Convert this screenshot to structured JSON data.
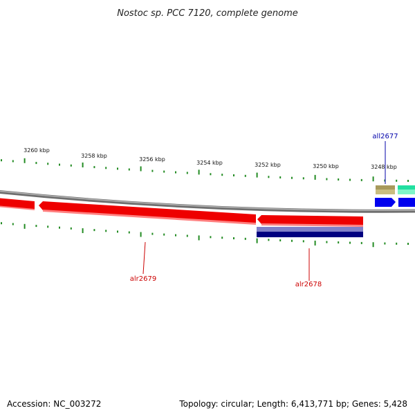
{
  "title": "Nostoc sp. PCC 7120, complete genome",
  "footer": {
    "accession": "Accession: NC_003272",
    "summary": "Topology: circular; Length: 6,413,771 bp; Genes: 5,428"
  },
  "colors": {
    "backbone": "#8c8c8c",
    "forward_cds": "#ee0000",
    "reverse_cds": "#000080",
    "tick": "#228b22",
    "label_forward": "#cc0000",
    "label_reverse": "#0000aa",
    "trna": "#a89a5c",
    "rrna": "#22e0a0",
    "gene_blue": "#0000ee"
  },
  "scale_labels": [
    {
      "kbp": 3260,
      "label": "3260 kbp"
    },
    {
      "kbp": 3258,
      "label": "3258 kbp"
    },
    {
      "kbp": 3256,
      "label": "3256 kbp"
    },
    {
      "kbp": 3254,
      "label": "3254 kbp"
    },
    {
      "kbp": 3252,
      "label": "3252 kbp"
    },
    {
      "kbp": 3250,
      "label": "3250 kbp"
    },
    {
      "kbp": 3248,
      "label": "3248 kbp"
    }
  ],
  "gene_labels": {
    "all2677": "all2677",
    "alr2679": "alr2679",
    "alr2678": "alr2678"
  }
}
